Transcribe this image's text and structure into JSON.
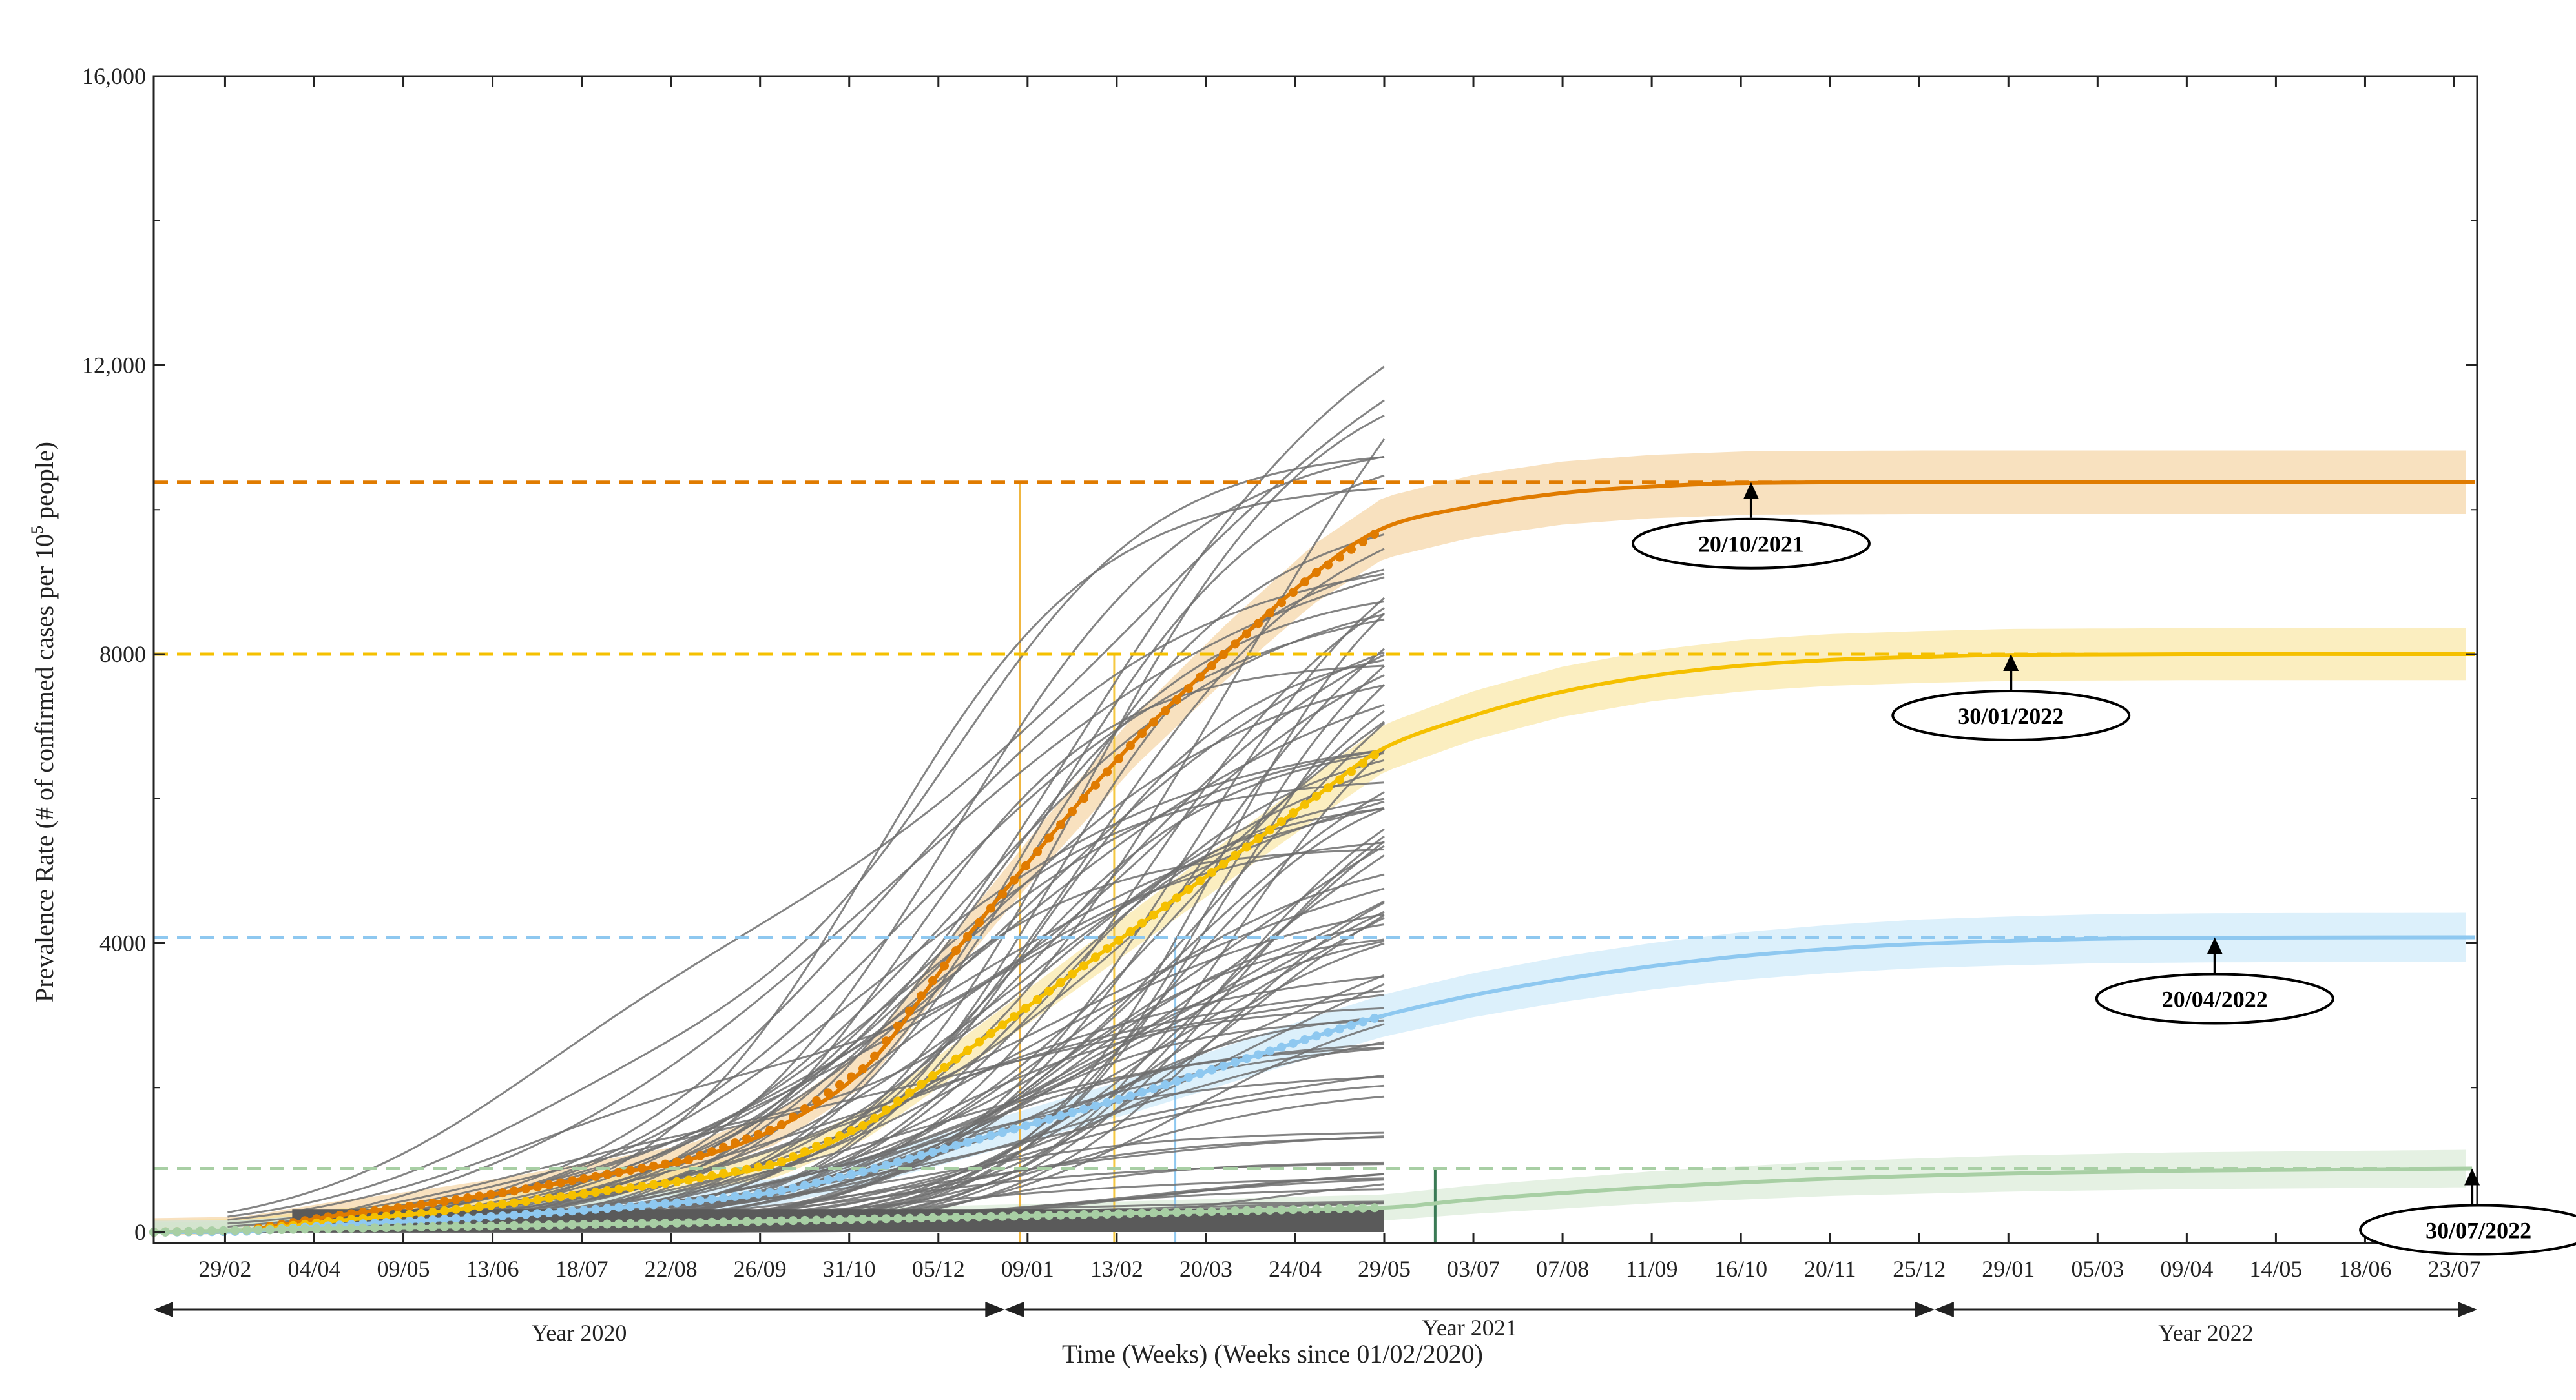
{
  "chart_data": {
    "type": "line",
    "xlabel": "Time (Weeks) (Weeks since 01/02/2020)",
    "ylabel": "Prevalence Rate (# of confirmed cases per 10",
    "ylabel_sup": "5",
    "ylabel_tail": " people)",
    "xlim": [
      "2020-02-01",
      "2022-08-01"
    ],
    "ylim": [
      0,
      16000
    ],
    "grid": false,
    "y_ticks": [
      {
        "value": 0,
        "label": "0"
      },
      {
        "value": 4000,
        "label": "4000"
      },
      {
        "value": 8000,
        "label": "8000"
      },
      {
        "value": 12000,
        "label": "12,000"
      },
      {
        "value": 16000,
        "label": "16,000"
      }
    ],
    "x_ticks": [
      {
        "date": "2020-02-29",
        "label": "29/02"
      },
      {
        "date": "2020-04-04",
        "label": "04/04"
      },
      {
        "date": "2020-05-09",
        "label": "09/05"
      },
      {
        "date": "2020-06-13",
        "label": "13/06"
      },
      {
        "date": "2020-07-18",
        "label": "18/07"
      },
      {
        "date": "2020-08-22",
        "label": "22/08"
      },
      {
        "date": "2020-09-26",
        "label": "26/09"
      },
      {
        "date": "2020-10-31",
        "label": "31/10"
      },
      {
        "date": "2020-12-05",
        "label": "05/12"
      },
      {
        "date": "2021-01-09",
        "label": "09/01"
      },
      {
        "date": "2021-02-13",
        "label": "13/02"
      },
      {
        "date": "2021-03-20",
        "label": "20/03"
      },
      {
        "date": "2021-04-24",
        "label": "24/04"
      },
      {
        "date": "2021-05-29",
        "label": "29/05"
      },
      {
        "date": "2021-07-03",
        "label": "03/07"
      },
      {
        "date": "2021-08-07",
        "label": "07/08"
      },
      {
        "date": "2021-09-11",
        "label": "11/09"
      },
      {
        "date": "2021-10-16",
        "label": "16/10"
      },
      {
        "date": "2021-11-20",
        "label": "20/11"
      },
      {
        "date": "2021-12-25",
        "label": "25/12"
      },
      {
        "date": "2022-01-29",
        "label": "29/01"
      },
      {
        "date": "2022-03-05",
        "label": "05/03"
      },
      {
        "date": "2022-04-09",
        "label": "09/04"
      },
      {
        "date": "2022-05-14",
        "label": "14/05"
      },
      {
        "date": "2022-06-18",
        "label": "18/06"
      },
      {
        "date": "2022-07-23",
        "label": "23/07"
      }
    ],
    "year_spans": [
      {
        "label": "Year 2020",
        "start": "2020-02-01",
        "end": "2020-12-31"
      },
      {
        "label": "Year 2021",
        "start": "2020-12-31",
        "end": "2021-12-31"
      },
      {
        "label": "Year 2022",
        "start": "2021-12-31",
        "end": "2022-08-01"
      }
    ],
    "observed_end": "2021-05-29",
    "series": [
      {
        "color": "#e07b00",
        "band_color": "#f2c98a",
        "plateau": 10380,
        "band_half_width": 380,
        "observed_dates": [
          "2020-02-01",
          "2020-03-07",
          "2020-04-11",
          "2020-05-16",
          "2020-06-20",
          "2020-07-25",
          "2020-08-29",
          "2020-10-03",
          "2020-11-07",
          "2020-12-12",
          "2021-01-16",
          "2021-02-20",
          "2021-03-27",
          "2021-05-01",
          "2021-05-29"
        ],
        "observed": [
          0,
          20,
          220,
          380,
          560,
          780,
          1000,
          1450,
          2300,
          3900,
          5400,
          6800,
          8000,
          9100,
          9750
        ],
        "forecast_dates": [
          "2021-05-29",
          "2021-07-03",
          "2021-08-07",
          "2021-09-11",
          "2021-10-20",
          "2021-12-25",
          "2022-03-05",
          "2022-05-14",
          "2022-07-31"
        ],
        "forecast": [
          9750,
          10050,
          10230,
          10320,
          10370,
          10380,
          10380,
          10380,
          10380
        ],
        "saturation_date": "2021-10-20",
        "saturation_label": "20/10/2021",
        "marker_date": "2021-01-06",
        "marker_color": "#f0b640"
      },
      {
        "color": "#f5c000",
        "band_color": "#f7e08c",
        "plateau": 8000,
        "band_half_width": 300,
        "observed_dates": [
          "2020-02-01",
          "2020-03-07",
          "2020-04-11",
          "2020-05-16",
          "2020-06-20",
          "2020-07-25",
          "2020-08-29",
          "2020-10-03",
          "2020-11-07",
          "2020-12-12",
          "2021-01-16",
          "2021-02-20",
          "2021-03-27",
          "2021-05-01",
          "2021-05-29"
        ],
        "observed": [
          0,
          15,
          150,
          260,
          400,
          560,
          720,
          950,
          1500,
          2400,
          3300,
          4200,
          5100,
          6000,
          6700
        ],
        "forecast_dates": [
          "2021-05-29",
          "2021-07-03",
          "2021-08-07",
          "2021-09-11",
          "2021-10-16",
          "2021-11-20",
          "2021-12-25",
          "2022-01-30",
          "2022-04-09",
          "2022-07-31"
        ],
        "forecast": [
          6700,
          7150,
          7480,
          7700,
          7840,
          7920,
          7960,
          7990,
          8000,
          8000
        ],
        "saturation_date": "2022-01-30",
        "saturation_label": "30/01/2022",
        "marker_date": "2021-02-12",
        "marker_color": "#f5c842"
      },
      {
        "color": "#8ec8f0",
        "band_color": "#bfe3f8",
        "plateau": 4080,
        "band_half_width": 280,
        "observed_dates": [
          "2020-02-01",
          "2020-03-07",
          "2020-04-11",
          "2020-05-16",
          "2020-06-20",
          "2020-07-25",
          "2020-08-29",
          "2020-10-03",
          "2020-11-07",
          "2020-12-12",
          "2021-01-16",
          "2021-02-20",
          "2021-03-27",
          "2021-05-01",
          "2021-05-29"
        ],
        "observed": [
          0,
          10,
          90,
          160,
          230,
          320,
          420,
          560,
          850,
          1200,
          1550,
          1900,
          2300,
          2700,
          3000
        ],
        "forecast_dates": [
          "2021-05-29",
          "2021-07-03",
          "2021-08-07",
          "2021-09-11",
          "2021-10-16",
          "2021-11-20",
          "2021-12-25",
          "2022-01-29",
          "2022-03-05",
          "2022-04-20",
          "2022-07-31"
        ],
        "forecast": [
          3000,
          3280,
          3500,
          3680,
          3820,
          3920,
          3990,
          4030,
          4060,
          4075,
          4080
        ],
        "saturation_date": "2022-04-20",
        "saturation_label": "20/04/2022",
        "marker_date": "2021-03-08",
        "marker_color": "#8ec8f0"
      },
      {
        "color": "#a8cfa4",
        "band_color": "#cfe6cc",
        "plateau": 880,
        "band_half_width": 200,
        "observed_dates": [
          "2020-02-01",
          "2020-04-11",
          "2020-06-20",
          "2020-08-29",
          "2020-11-07",
          "2021-01-16",
          "2021-03-27",
          "2021-05-29"
        ],
        "observed": [
          0,
          50,
          90,
          130,
          180,
          230,
          290,
          340
        ],
        "forecast_dates": [
          "2021-05-29",
          "2021-07-03",
          "2021-09-11",
          "2021-11-20",
          "2022-01-29",
          "2022-04-09",
          "2022-07-30"
        ],
        "forecast": [
          340,
          450,
          620,
          740,
          810,
          850,
          880
        ],
        "saturation_date": "2022-07-30",
        "saturation_label": "30/07/2022",
        "marker_date": "2021-06-18",
        "marker_color": "#3a7a55"
      }
    ],
    "gray_curve_count": 100
  }
}
